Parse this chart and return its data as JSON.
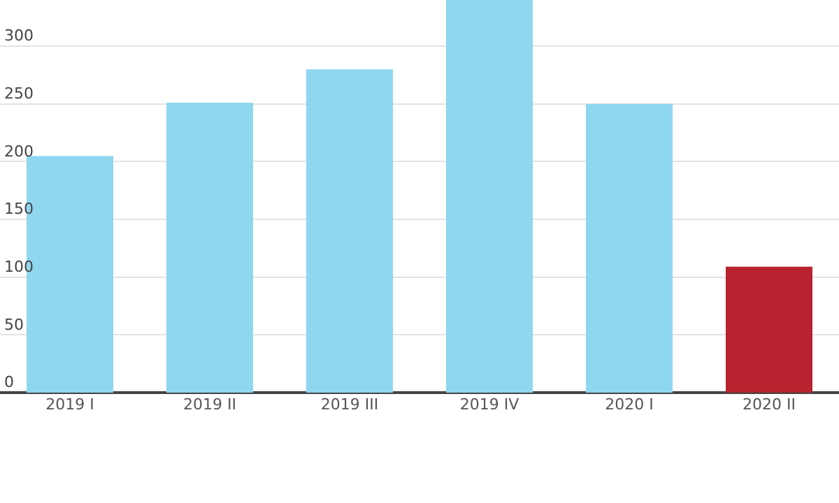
{
  "chart_data": {
    "type": "bar",
    "categories": [
      "2019 I",
      "2019 II",
      "2019 III",
      "2019 IV",
      "2020 I",
      "2020 II"
    ],
    "values": [
      205,
      251,
      280,
      340,
      250,
      109
    ],
    "colors": [
      "#8fd6ef",
      "#8fd6ef",
      "#8fd6ef",
      "#8fd6ef",
      "#8fd6ef",
      "#b8232f"
    ],
    "ylim": [
      0,
      340
    ],
    "yticks": [
      0,
      50,
      100,
      150,
      200,
      250,
      300
    ],
    "grid": "y"
  }
}
